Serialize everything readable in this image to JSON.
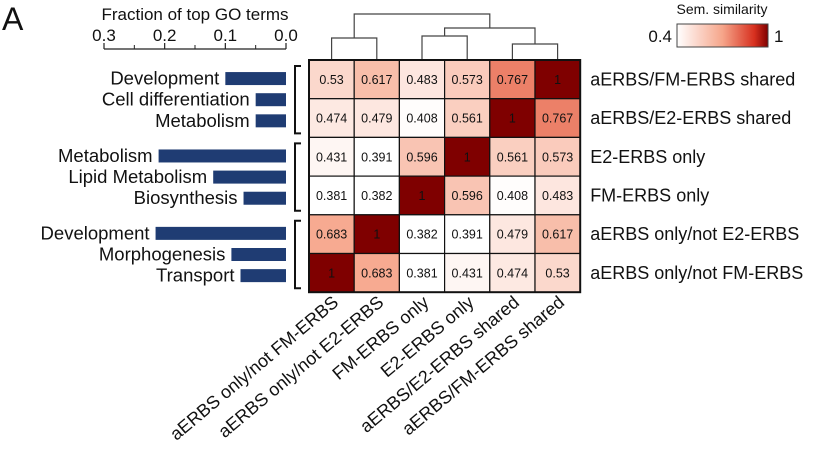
{
  "panel_label": "A",
  "chart_data": [
    {
      "type": "bar",
      "orientation": "horizontal",
      "title": "Fraction of top GO terms",
      "xlim": [
        0.3,
        0.0
      ],
      "ticks": [
        "0.3",
        "0.2",
        "0.1",
        "0.0"
      ],
      "tick_values": [
        0.3,
        0.2,
        0.1,
        0.0
      ],
      "bar_color": "#1f3c73",
      "groups": [
        {
          "terms": [
            {
              "label": "Development",
              "value": 0.1
            },
            {
              "label": "Cell differentiation",
              "value": 0.05
            },
            {
              "label": "Metabolism",
              "value": 0.05
            }
          ]
        },
        {
          "terms": [
            {
              "label": "Metabolism",
              "value": 0.21
            },
            {
              "label": "Lipid Metabolism",
              "value": 0.12
            },
            {
              "label": "Biosynthesis",
              "value": 0.07
            }
          ]
        },
        {
          "terms": [
            {
              "label": "Development",
              "value": 0.215
            },
            {
              "label": "Morphogenesis",
              "value": 0.09
            },
            {
              "label": "Transport",
              "value": 0.075
            }
          ]
        }
      ]
    },
    {
      "type": "heatmap",
      "legend_title": "Sem. similarity",
      "legend_min": "0.4",
      "legend_max": "1",
      "color_range": [
        0.4,
        1.0
      ],
      "colors": {
        "low": "#ffffff",
        "mid": "#f6a58a",
        "high": "#d7301f",
        "max": "#7f0000"
      },
      "rows": [
        "aERBS/FM-ERBS shared",
        "aERBS/E2-ERBS shared",
        "E2-ERBS only",
        "FM-ERBS only",
        "aERBS only/not E2-ERBS",
        "aERBS only/not FM-ERBS"
      ],
      "cols": [
        "aERBS only/not FM-ERBS",
        "aERBS only/not E2-ERBS",
        "FM-ERBS only",
        "E2-ERBS only",
        "aERBS/E2-ERBS shared",
        "aERBS/FM-ERBS shared"
      ],
      "values": [
        [
          0.53,
          0.617,
          0.483,
          0.573,
          0.767,
          1
        ],
        [
          0.474,
          0.479,
          0.408,
          0.561,
          1,
          0.767
        ],
        [
          0.431,
          0.391,
          0.596,
          1,
          0.561,
          0.573
        ],
        [
          0.381,
          0.382,
          1,
          0.596,
          0.408,
          0.483
        ],
        [
          0.683,
          1,
          0.382,
          0.391,
          0.479,
          0.617
        ],
        [
          1,
          0.683,
          0.381,
          0.431,
          0.474,
          0.53
        ]
      ],
      "labels": [
        [
          "0.53",
          "0.617",
          "0.483",
          "0.573",
          "0.767",
          "1"
        ],
        [
          "0.474",
          "0.479",
          "0.408",
          "0.561",
          "1",
          "0.767"
        ],
        [
          "0.431",
          "0.391",
          "0.596",
          "1",
          "0.561",
          "0.573"
        ],
        [
          "0.381",
          "0.382",
          "1",
          "0.596",
          "0.408",
          "0.483"
        ],
        [
          "0.683",
          "1",
          "0.382",
          "0.391",
          "0.479",
          "0.617"
        ],
        [
          "1",
          "0.683",
          "0.381",
          "0.431",
          "0.474",
          "0.53"
        ]
      ],
      "dendrogram": "top"
    }
  ]
}
